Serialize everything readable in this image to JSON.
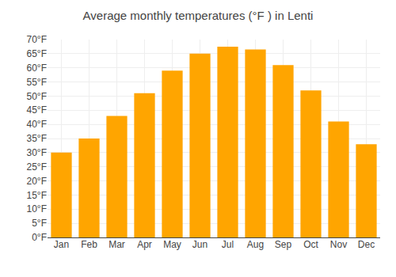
{
  "chart_data": {
    "type": "bar",
    "title": "Average monthly temperatures (°F ) in Lenti",
    "categories": [
      "Jan",
      "Feb",
      "Mar",
      "Apr",
      "May",
      "Jun",
      "Jul",
      "Aug",
      "Sep",
      "Oct",
      "Nov",
      "Dec"
    ],
    "values": [
      30,
      35,
      43,
      51,
      59,
      65,
      67.5,
      66.5,
      61,
      52,
      41,
      33
    ],
    "color": "#FFA500",
    "ylim": [
      0,
      70
    ],
    "yticks": [
      {
        "value": 0,
        "label": "0°F"
      },
      {
        "value": 5,
        "label": "5°F"
      },
      {
        "value": 10,
        "label": "10°F"
      },
      {
        "value": 15,
        "label": "15°F"
      },
      {
        "value": 20,
        "label": "20°F"
      },
      {
        "value": 25,
        "label": "25°F"
      },
      {
        "value": 30,
        "label": "30°F"
      },
      {
        "value": 35,
        "label": "35°F"
      },
      {
        "value": 40,
        "label": "40°F"
      },
      {
        "value": 45,
        "label": "45°F"
      },
      {
        "value": 50,
        "label": "50°F"
      },
      {
        "value": 55,
        "label": "55°F"
      },
      {
        "value": 60,
        "label": "60°F"
      },
      {
        "value": 65,
        "label": "65°F"
      },
      {
        "value": 70,
        "label": "70°F"
      }
    ],
    "grid": true
  }
}
